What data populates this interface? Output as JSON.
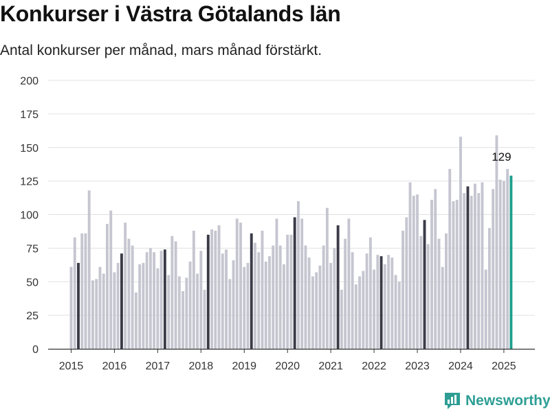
{
  "header": {
    "title": "Konkurser i Västra Götalands län",
    "subtitle": "Antal konkurser per månad, mars månad förstärkt."
  },
  "brand": {
    "name": "Newsworthy"
  },
  "colors": {
    "regular_bar": "#c6c6d1",
    "march_bar": "#3b3b48",
    "latest_bar": "#1f9e8e",
    "grid": "#e0e0e0",
    "axis": "#333333",
    "brand": "#2e9e94"
  },
  "chart_data": {
    "type": "bar",
    "title": "Konkurser i Västra Götalands län",
    "subtitle": "Antal konkurser per månad, mars månad förstärkt.",
    "xlabel": "",
    "ylabel": "",
    "ylim": [
      0,
      200
    ],
    "yticks": [
      0,
      25,
      50,
      75,
      100,
      125,
      150,
      175,
      200
    ],
    "xtick_labels": [
      "2015",
      "2016",
      "2017",
      "2018",
      "2019",
      "2020",
      "2021",
      "2022",
      "2023",
      "2024",
      "2025"
    ],
    "grid": true,
    "start": "2015-01",
    "end": "2025-03",
    "highlight": "mars",
    "annotation": {
      "label": "129",
      "month": "2025-03"
    },
    "values": [
      61,
      83,
      64,
      86,
      86,
      118,
      51,
      52,
      61,
      56,
      93,
      103,
      57,
      64,
      71,
      94,
      82,
      77,
      42,
      63,
      64,
      72,
      75,
      72,
      60,
      73,
      74,
      55,
      84,
      80,
      54,
      43,
      53,
      65,
      88,
      56,
      73,
      44,
      85,
      89,
      88,
      92,
      71,
      74,
      52,
      66,
      97,
      94,
      61,
      64,
      86,
      79,
      72,
      88,
      65,
      69,
      77,
      97,
      77,
      63,
      85,
      85,
      98,
      110,
      97,
      77,
      68,
      54,
      57,
      62,
      77,
      105,
      64,
      75,
      92,
      44,
      82,
      97,
      72,
      48,
      54,
      58,
      71,
      83,
      59,
      70,
      69,
      63,
      70,
      68,
      55,
      50,
      88,
      98,
      124,
      114,
      115,
      84,
      96,
      78,
      111,
      119,
      82,
      61,
      86,
      134,
      110,
      111,
      158,
      116,
      121,
      114,
      123,
      116,
      124,
      59,
      90,
      119,
      159,
      126,
      125,
      134,
      129
    ]
  }
}
